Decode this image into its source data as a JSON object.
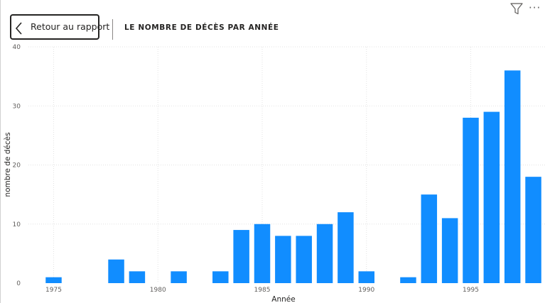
{
  "header": {
    "back_label": "Retour au rapport",
    "title": "LE NOMBRE DE DÉCÈS PAR ANNÉE"
  },
  "toolbar": {
    "filter_icon": "filter-icon",
    "more_icon": "more-options-icon",
    "more_glyph": "···"
  },
  "colors": {
    "bar": "#118DFF",
    "grid": "#e3e3e3",
    "text": "#252423"
  },
  "chart_data": {
    "type": "bar",
    "title": "LE NOMBRE DE DÉCÈS PAR ANNÉE",
    "xlabel": "Année",
    "ylabel": "nombre de décès",
    "ylim": [
      0,
      40
    ],
    "yticks": [
      0,
      10,
      20,
      30,
      40
    ],
    "xticks": [
      1975,
      1980,
      1985,
      1990,
      1995
    ],
    "grid": true,
    "x": [
      1975,
      1978,
      1979,
      1981,
      1983,
      1984,
      1985,
      1986,
      1987,
      1988,
      1989,
      1990,
      1992,
      1993,
      1994,
      1995,
      1996,
      1997,
      1998
    ],
    "values": [
      1,
      4,
      2,
      2,
      2,
      9,
      10,
      8,
      8,
      10,
      12,
      2,
      1,
      15,
      11,
      28,
      29,
      36,
      18
    ]
  }
}
